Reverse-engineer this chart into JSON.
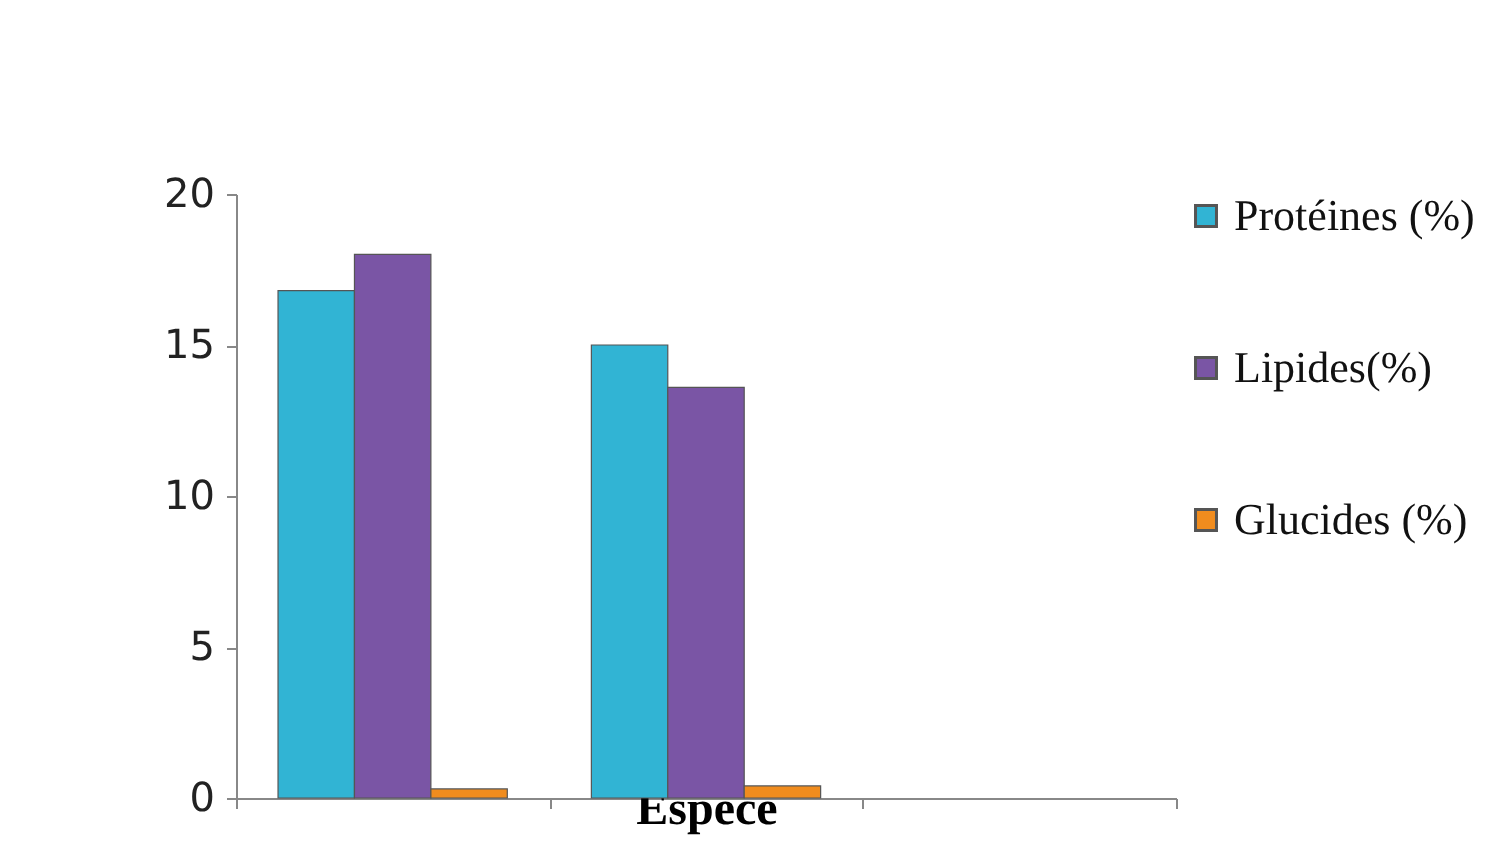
{
  "chart_data": {
    "type": "bar",
    "categories": [
      null,
      null,
      null
    ],
    "xlabel": "Espèce",
    "series": [
      {
        "name": "Protéines (%)",
        "color": "#31b4d4",
        "values": [
          16.8,
          15.0,
          null
        ]
      },
      {
        "name": "Lipides(%)",
        "color": "#7a55a5",
        "values": [
          18.0,
          13.6,
          null
        ]
      },
      {
        "name": "Glucides (%)",
        "color": "#f08c1e",
        "values": [
          0.3,
          0.4,
          null
        ]
      }
    ],
    "ylim": [
      0,
      20
    ],
    "yticks": [
      0,
      5,
      10,
      15,
      20
    ],
    "legend": "right",
    "tick_labels": "y"
  }
}
